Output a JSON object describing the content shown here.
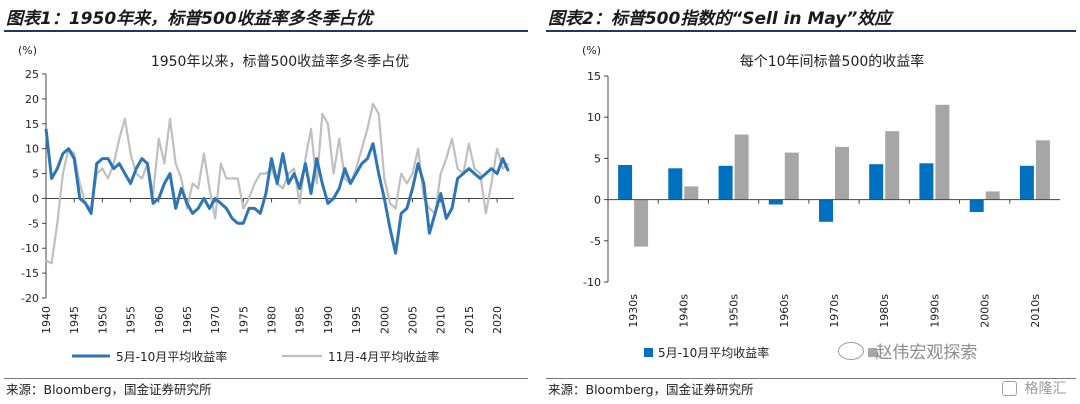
{
  "left": {
    "panel_title": "图表1：1950年来，标普500收益率多冬季占优",
    "source": "来源：Bloomberg，国金证券研究所",
    "chart_data": {
      "type": "line",
      "title": "1950年以来，标普500收益率多冬季占优",
      "ylabel": "(%)",
      "ylim": [
        -20,
        25
      ],
      "yticks": [
        -20,
        -15,
        -10,
        -5,
        0,
        5,
        10,
        15,
        20,
        25
      ],
      "xlim": [
        1940,
        2023
      ],
      "xticks": [
        1940,
        1945,
        1950,
        1955,
        1960,
        1965,
        1970,
        1975,
        1980,
        1985,
        1990,
        1995,
        2000,
        2005,
        2010,
        2015,
        2020
      ],
      "series": [
        {
          "name": "5月-10月平均收益率",
          "color": "#2e75b6",
          "x": [
            1940,
            1941,
            1942,
            1943,
            1944,
            1945,
            1946,
            1947,
            1948,
            1949,
            1950,
            1951,
            1952,
            1953,
            1954,
            1955,
            1956,
            1957,
            1958,
            1959,
            1960,
            1961,
            1962,
            1963,
            1964,
            1965,
            1966,
            1967,
            1968,
            1969,
            1970,
            1971,
            1972,
            1973,
            1974,
            1975,
            1976,
            1977,
            1978,
            1979,
            1980,
            1981,
            1982,
            1983,
            1984,
            1985,
            1986,
            1987,
            1988,
            1989,
            1990,
            1991,
            1992,
            1993,
            1994,
            1995,
            1996,
            1997,
            1998,
            1999,
            2000,
            2001,
            2002,
            2003,
            2004,
            2005,
            2006,
            2007,
            2008,
            2009,
            2010,
            2011,
            2012,
            2013,
            2014,
            2015,
            2016,
            2017,
            2018,
            2019,
            2020,
            2021,
            2022
          ],
          "values": [
            14,
            4,
            6,
            9,
            10,
            8,
            0,
            -1,
            -3,
            7,
            8,
            8,
            6,
            7,
            5,
            3,
            6,
            8,
            7,
            -1,
            0,
            3,
            5,
            -2,
            2,
            -1,
            -3,
            -2,
            0,
            -2,
            0,
            -1,
            -2,
            -4,
            -5,
            -5,
            -2,
            -2,
            -3,
            1,
            8,
            3,
            9,
            3,
            5,
            2,
            7,
            1,
            8,
            3,
            -1,
            0,
            2,
            6,
            3,
            5,
            7,
            8,
            11,
            5,
            0,
            -6,
            -11,
            -3,
            -2,
            2,
            7,
            3,
            -7,
            -3,
            1,
            -4,
            -2,
            4,
            5,
            6,
            5,
            4,
            5,
            6,
            5,
            8,
            5.5
          ]
        },
        {
          "name": "11月-4月平均收益率",
          "color": "#bfbfbf",
          "x": [
            1940,
            1941,
            1942,
            1943,
            1944,
            1945,
            1946,
            1947,
            1948,
            1949,
            1950,
            1951,
            1952,
            1953,
            1954,
            1955,
            1956,
            1957,
            1958,
            1959,
            1960,
            1961,
            1962,
            1963,
            1964,
            1965,
            1966,
            1967,
            1968,
            1969,
            1970,
            1971,
            1972,
            1973,
            1974,
            1975,
            1976,
            1977,
            1978,
            1979,
            1980,
            1981,
            1982,
            1983,
            1984,
            1985,
            1986,
            1987,
            1988,
            1989,
            1990,
            1991,
            1992,
            1993,
            1994,
            1995,
            1996,
            1997,
            1998,
            1999,
            2000,
            2001,
            2002,
            2003,
            2004,
            2005,
            2006,
            2007,
            2008,
            2009,
            2010,
            2011,
            2012,
            2013,
            2014,
            2015,
            2016,
            2017,
            2018,
            2019,
            2020,
            2021,
            2022
          ],
          "values": [
            -12.5,
            -13,
            -5,
            5,
            10,
            9,
            3,
            -1,
            -2,
            5,
            6,
            4,
            7,
            12,
            16,
            9,
            5,
            4,
            7,
            1,
            12,
            7,
            16,
            7,
            4,
            -2,
            3,
            2,
            9,
            2,
            -4,
            7,
            4,
            4,
            4,
            -2,
            0,
            3,
            5,
            5,
            6,
            3,
            2,
            5,
            6,
            -1,
            8,
            14,
            3,
            17,
            15,
            5,
            12,
            4,
            3,
            6,
            10,
            14,
            19,
            17,
            4,
            -1,
            -2,
            5,
            3,
            5,
            10,
            0,
            -2,
            -3,
            5,
            8,
            12,
            6,
            5,
            11,
            6,
            5,
            -3,
            3,
            10,
            6,
            7
          ]
        }
      ]
    }
  },
  "right": {
    "panel_title": "图表2：标普500指数的“Sell in May”效应",
    "source": "来源：Bloomberg，国金证券研究所",
    "chart_data": {
      "type": "bar",
      "title": "每个10年间标普500的收益率",
      "ylabel": "(%)",
      "ylim": [
        -10,
        15
      ],
      "yticks": [
        -10,
        -5,
        0,
        5,
        10,
        15
      ],
      "categories": [
        "1930s",
        "1940s",
        "1950s",
        "1960s",
        "1970s",
        "1980s",
        "1990s",
        "2000s",
        "2010s"
      ],
      "series": [
        {
          "name": "5月-10月平均收益率",
          "color": "#0070c0",
          "values": [
            4.2,
            3.8,
            4.1,
            -0.6,
            -2.7,
            4.3,
            4.4,
            -1.5,
            4.1
          ]
        },
        {
          "name": "11月-4月平均收益率",
          "color": "#a6a6a6",
          "values": [
            -5.7,
            1.6,
            7.9,
            5.7,
            6.4,
            8.3,
            11.5,
            1.0,
            7.2
          ]
        }
      ]
    }
  },
  "watermark": {
    "text_1": "赵伟宏观探索",
    "text_2": "格隆汇"
  }
}
